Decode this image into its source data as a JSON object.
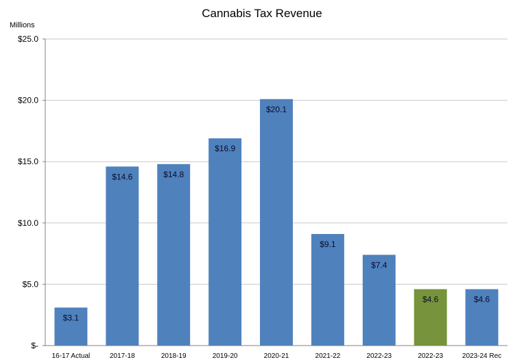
{
  "chart_data": {
    "type": "bar",
    "title": "Cannabis Tax Revenue",
    "unit_label": "Millions",
    "categories": [
      "16-17 Actual",
      "2017-18",
      "2018-19",
      "2019-20",
      "2020-21",
      "2021-22",
      "2022-23",
      "2022-23",
      "2023-24 Rec"
    ],
    "values": [
      3.1,
      14.6,
      14.8,
      16.9,
      20.1,
      9.1,
      7.4,
      4.6,
      4.6
    ],
    "data_labels": [
      "$3.1",
      "$14.6",
      "$14.8",
      "$16.9",
      "$20.1",
      "$9.1",
      "$7.4",
      "$4.6",
      "$4.6"
    ],
    "colors": [
      "#4f81bd",
      "#4f81bd",
      "#4f81bd",
      "#4f81bd",
      "#4f81bd",
      "#4f81bd",
      "#4f81bd",
      "#77933c",
      "#4f81bd"
    ],
    "ylim": [
      0,
      25
    ],
    "yticks": [
      0,
      5,
      10,
      15,
      20,
      25
    ],
    "ytick_labels": [
      "$-",
      "$5.0",
      "$10.0",
      "$15.0",
      "$20.0",
      "$25.0"
    ],
    "grid": true,
    "legend": false
  }
}
